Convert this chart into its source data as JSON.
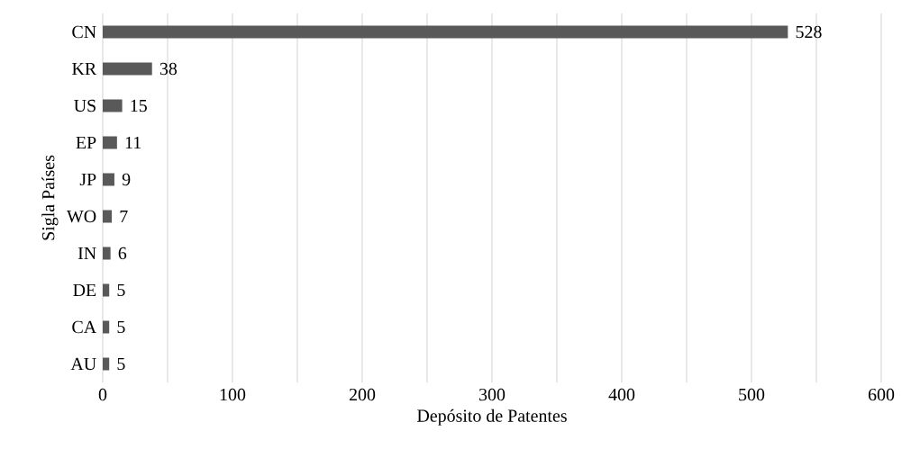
{
  "chart_data": {
    "type": "bar",
    "orientation": "horizontal",
    "xlabel": "Depósito de Patentes",
    "ylabel": "Sigla Países",
    "categories": [
      "CN",
      "KR",
      "US",
      "EP",
      "JP",
      "WO",
      "IN",
      "DE",
      "CA",
      "AU"
    ],
    "values": [
      528,
      38,
      15,
      11,
      9,
      7,
      6,
      5,
      5,
      5
    ],
    "color": "#595959",
    "data_labels": true,
    "grid": "x",
    "xlim": [
      0,
      600
    ],
    "xticks": [
      0,
      {
        "value": 50,
        "label": null
      },
      100,
      {
        "value": 150,
        "label": null
      },
      200,
      {
        "value": 250,
        "label": null
      },
      300,
      {
        "value": 350,
        "label": null
      },
      400,
      {
        "value": 450,
        "label": null
      },
      500,
      {
        "value": 550,
        "label": null
      },
      600
    ]
  }
}
